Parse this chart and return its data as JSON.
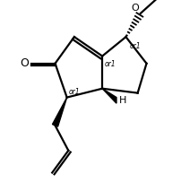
{
  "bg_color": "#ffffff",
  "line_color": "#000000",
  "line_width": 1.6,
  "font_size_O": 9,
  "font_size_or1": 5.5,
  "font_size_H": 8,
  "figsize": [
    2.02,
    2.04
  ],
  "dpi": 100,
  "xlim": [
    -2.6,
    2.4
  ],
  "ylim": [
    -3.2,
    3.0
  ]
}
